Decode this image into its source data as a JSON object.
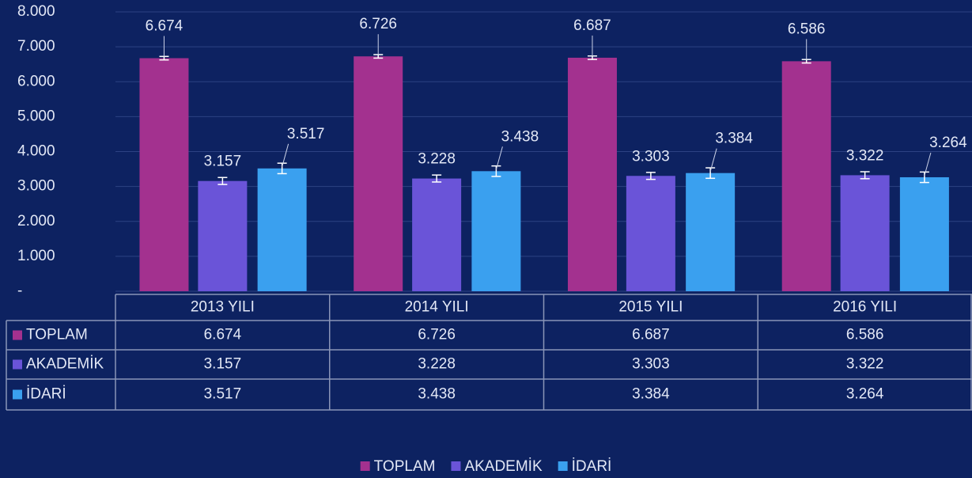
{
  "chart_data": {
    "type": "bar",
    "categories": [
      "2013 YILI",
      "2014 YILI",
      "2015 YILI",
      "2016 YILI"
    ],
    "series": [
      {
        "name": "TOPLAM",
        "color": "#a3318f",
        "values": [
          6674,
          6726,
          6687,
          6586
        ],
        "value_labels": [
          "6.674",
          "6.726",
          "6.687",
          "6.586"
        ],
        "errors": [
          50,
          50,
          50,
          50
        ]
      },
      {
        "name": "AKADEMİK",
        "color": "#6a54d8",
        "values": [
          3157,
          3228,
          3303,
          3322
        ],
        "value_labels": [
          "3.157",
          "3.228",
          "3.303",
          "3.322"
        ],
        "errors": [
          100,
          100,
          100,
          100
        ]
      },
      {
        "name": "İDARİ",
        "color": "#3aa0ef",
        "values": [
          3517,
          3438,
          3384,
          3264
        ],
        "value_labels": [
          "3.517",
          "3.438",
          "3.384",
          "3.264"
        ],
        "errors": [
          150,
          150,
          150,
          150
        ]
      }
    ],
    "ylim": [
      0,
      8000
    ],
    "yticks": [
      {
        "value": 0,
        "label": "-"
      },
      {
        "value": 1000,
        "label": "1.000"
      },
      {
        "value": 2000,
        "label": "2.000"
      },
      {
        "value": 3000,
        "label": "3.000"
      },
      {
        "value": 4000,
        "label": "4.000"
      },
      {
        "value": 5000,
        "label": "5.000"
      },
      {
        "value": 6000,
        "label": "6.000"
      },
      {
        "value": 7000,
        "label": "7.000"
      },
      {
        "value": 8000,
        "label": "8.000"
      }
    ],
    "grid": true,
    "legend": "bottom"
  }
}
